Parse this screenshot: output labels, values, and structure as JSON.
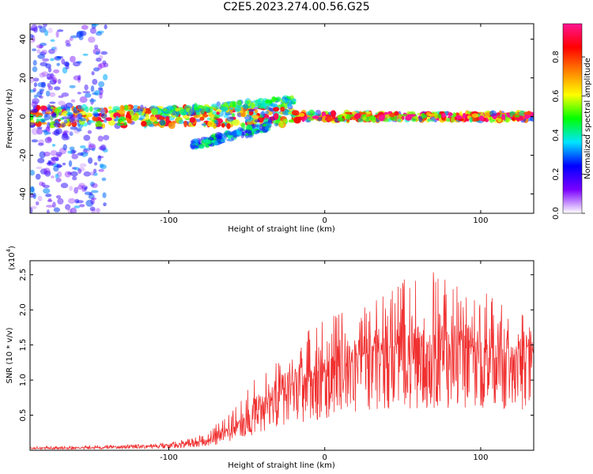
{
  "figure_title": "C2E5.2023.274.00.56.G25",
  "chart_data": [
    {
      "type": "heatmap",
      "title": "",
      "xlabel": "Height of straight line (km)",
      "ylabel": "Frequency (Hz)",
      "xlim": [
        -189,
        134
      ],
      "ylim": [
        -50,
        48
      ],
      "xticks": [
        -100,
        0,
        100
      ],
      "xtick_labels": [
        "-100",
        "0",
        "100"
      ],
      "yticks": [
        -40,
        -20,
        0,
        20,
        40
      ],
      "ytick_labels": [
        "-40",
        "-20",
        "0",
        "20",
        "40"
      ],
      "colorbar": {
        "label": "Normalized spectral amplitude",
        "range": [
          0,
          0.97
        ],
        "ticks": [
          0.0,
          0.2,
          0.4,
          0.6,
          0.8
        ],
        "tick_labels": [
          "0.0",
          "0.2",
          "0.4",
          "0.6",
          "0.8"
        ],
        "colormap": [
          "#ffffff",
          "#7a00ff",
          "#0000ff",
          "#00e5ff",
          "#00ff00",
          "#ffff00",
          "#ff8000",
          "#ff0000",
          "#ff1493"
        ]
      },
      "features": [
        {
          "name": "main-band",
          "x_range": [
            -189,
            134
          ],
          "frequency_hz": 0,
          "amplitude_range": [
            0.2,
            0.95
          ]
        },
        {
          "name": "upper-branch",
          "x_range": [
            -110,
            -20
          ],
          "frequency_hz_range": [
            2,
            8
          ],
          "amplitude_range": [
            0.3,
            0.6
          ]
        },
        {
          "name": "lower-branch",
          "x_range": [
            -85,
            -35
          ],
          "frequency_hz_range": [
            -15,
            -5
          ],
          "amplitude_range": [
            0.2,
            0.5
          ]
        },
        {
          "name": "low-altitude-scatter",
          "x_range": [
            -189,
            -140
          ],
          "frequency_hz_range": [
            -50,
            48
          ],
          "amplitude_range": [
            0.05,
            0.35
          ]
        }
      ]
    },
    {
      "type": "line",
      "title": "",
      "xlabel": "Height of straight line (km)",
      "ylabel": "SNR (10 * v/v)",
      "y_multiplier_label": "(x10",
      "y_multiplier_exp": "4",
      "xlim": [
        -189,
        134
      ],
      "ylim": [
        0,
        2.7
      ],
      "xticks": [
        -100,
        0,
        100
      ],
      "xtick_labels": [
        "-100",
        "0",
        "100"
      ],
      "yticks": [
        0.5,
        1.0,
        1.5,
        2.0,
        2.5
      ],
      "ytick_labels": [
        "0.5",
        "1.0",
        "1.5",
        "2.0",
        "2.5"
      ],
      "line_color": "#f03030",
      "envelope": {
        "x": [
          -189,
          -150,
          -110,
          -90,
          -75,
          -60,
          -45,
          -30,
          -15,
          0,
          20,
          40,
          60,
          80,
          100,
          120,
          134
        ],
        "mean": [
          0.03,
          0.04,
          0.06,
          0.09,
          0.13,
          0.3,
          0.55,
          0.8,
          1.0,
          1.1,
          1.3,
          1.45,
          1.5,
          1.5,
          1.45,
          1.4,
          1.4
        ],
        "peak": [
          0.05,
          0.07,
          0.1,
          0.15,
          0.25,
          0.6,
          1.05,
          1.4,
          1.75,
          1.9,
          2.1,
          2.4,
          2.65,
          2.45,
          2.3,
          2.0,
          1.9
        ]
      }
    }
  ]
}
